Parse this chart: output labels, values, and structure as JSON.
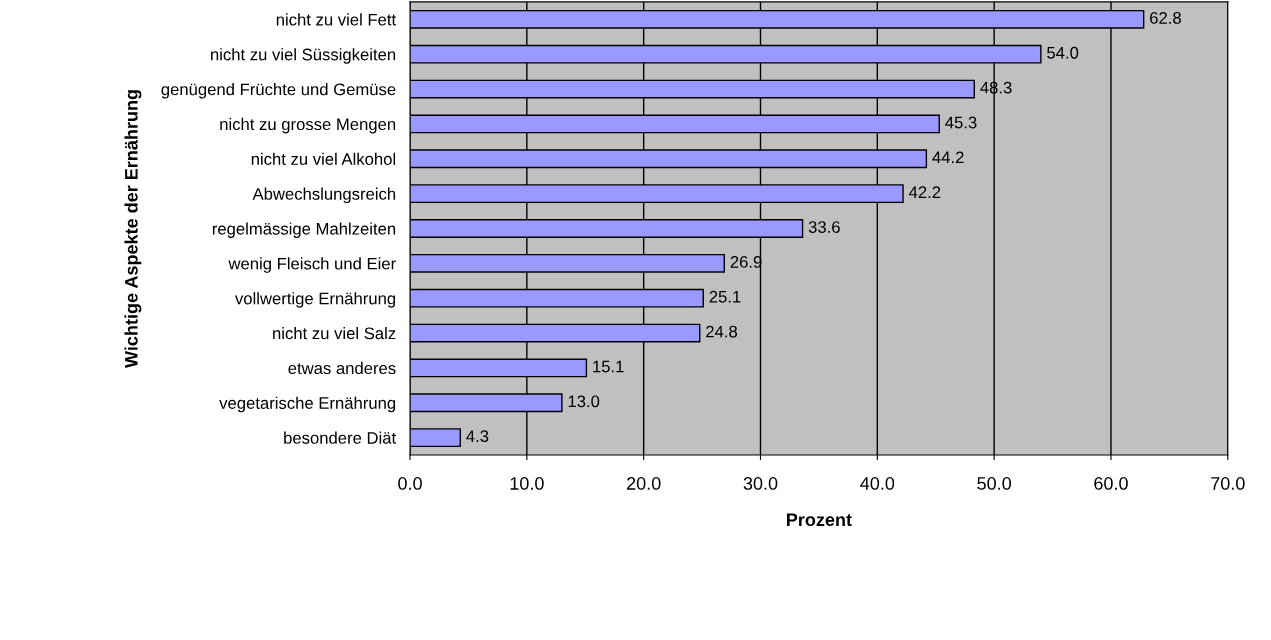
{
  "chart_data": {
    "type": "bar",
    "orientation": "horizontal",
    "xlabel": "Prozent",
    "ylabel": "Wichtige Aspekte der Ernährung",
    "categories": [
      "nicht zu viel Fett",
      "nicht zu viel Süssigkeiten",
      "genügend Früchte und Gemüse",
      "nicht zu grosse Mengen",
      "nicht zu viel Alkohol",
      "Abwechslungsreich",
      "regelmässige Mahlzeiten",
      "wenig Fleisch und Eier",
      "vollwertige Ernährung",
      "nicht zu viel Salz",
      "etwas anderes",
      "vegetarische Ernährung",
      "besondere Diät"
    ],
    "values": [
      62.8,
      54.0,
      48.3,
      45.3,
      44.2,
      42.2,
      33.6,
      26.9,
      25.1,
      24.8,
      15.1,
      13.0,
      4.3
    ],
    "value_labels": [
      "62.8",
      "54.0",
      "48.3",
      "45.3",
      "44.2",
      "42.2",
      "33.6",
      "26.9",
      "25.1",
      "24.8",
      "15.1",
      "13.0",
      "4.3"
    ],
    "color": "#9999ff",
    "xlim": [
      0,
      70
    ],
    "xticks": [
      {
        "value": 0,
        "label": "0.0"
      },
      {
        "value": 10,
        "label": "10.0"
      },
      {
        "value": 20,
        "label": "20.0"
      },
      {
        "value": 30,
        "label": "30.0"
      },
      {
        "value": 40,
        "label": "40.0"
      },
      {
        "value": 50,
        "label": "50.0"
      },
      {
        "value": 60,
        "label": "60.0"
      },
      {
        "value": 70,
        "label": "70.0"
      }
    ],
    "grid": "x",
    "legend": false
  }
}
